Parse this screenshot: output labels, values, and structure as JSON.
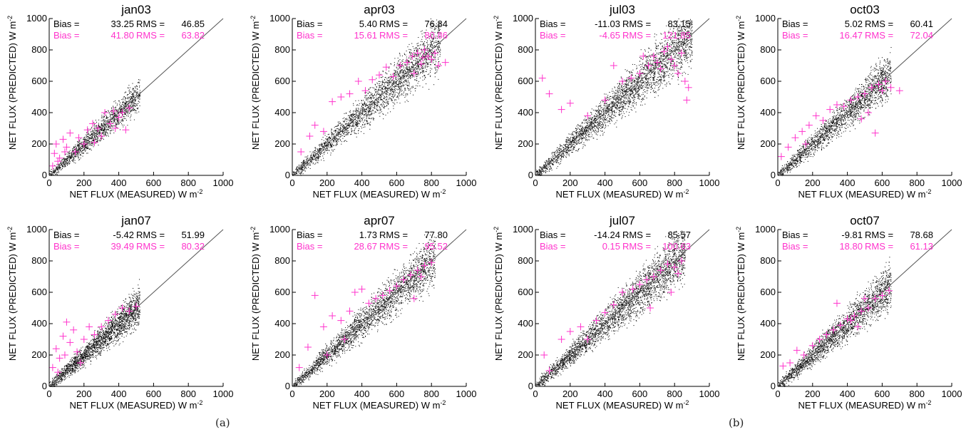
{
  "figure": {
    "label_a": "(a)",
    "label_b": "(b)"
  },
  "colors": {
    "points": "#000000",
    "crosses": "#ff33cc",
    "line": "#555555",
    "axis": "#000000"
  },
  "chart_data": [
    {
      "type": "scatter",
      "title": "jan03",
      "xlabel": "NET FLUX (MEASURED) W m",
      "ylabel": "NET FLUX (PREDICTED) W m",
      "unit_exp": "-2",
      "xlim": [
        0,
        1000
      ],
      "ylim": [
        0,
        1000
      ],
      "xticks": [
        0,
        200,
        400,
        600,
        800,
        1000
      ],
      "yticks": [
        0,
        200,
        400,
        600,
        800,
        1000
      ],
      "grid": false,
      "reference_line": "1:1",
      "stats": [
        {
          "label": "Bias =",
          "bias": "33.25",
          "rms_label": "RMS =",
          "rms": "46.85",
          "color": "#000000"
        },
        {
          "label": "Bias =",
          "bias": "41.80",
          "rms_label": "RMS =",
          "rms": "63.82",
          "color": "#ff33cc"
        }
      ],
      "cloud": {
        "max": 520,
        "n": 1500,
        "spread": 0.12
      },
      "crosses": [
        [
          20,
          60
        ],
        [
          30,
          140
        ],
        [
          40,
          200
        ],
        [
          60,
          110
        ],
        [
          80,
          230
        ],
        [
          100,
          180
        ],
        [
          120,
          270
        ],
        [
          150,
          150
        ],
        [
          170,
          240
        ],
        [
          200,
          200
        ],
        [
          220,
          290
        ],
        [
          250,
          330
        ],
        [
          280,
          300
        ],
        [
          300,
          250
        ],
        [
          320,
          400
        ],
        [
          350,
          330
        ],
        [
          370,
          410
        ],
        [
          400,
          370
        ],
        [
          420,
          400
        ],
        [
          440,
          290
        ],
        [
          460,
          430
        ],
        [
          380,
          300
        ],
        [
          260,
          210
        ],
        [
          90,
          150
        ],
        [
          50,
          90
        ]
      ]
    },
    {
      "type": "scatter",
      "title": "apr03",
      "xlabel": "NET FLUX (MEASURED) W m",
      "ylabel": "NET FLUX (PREDICTED) W m",
      "unit_exp": "-2",
      "xlim": [
        0,
        1000
      ],
      "ylim": [
        0,
        1000
      ],
      "xticks": [
        0,
        200,
        400,
        600,
        800,
        1000
      ],
      "yticks": [
        0,
        200,
        400,
        600,
        800,
        1000
      ],
      "grid": false,
      "reference_line": "1:1",
      "stats": [
        {
          "label": "Bias =",
          "bias": "5.40",
          "rms_label": "RMS =",
          "rms": "76.84",
          "color": "#000000"
        },
        {
          "label": "Bias =",
          "bias": "15.61",
          "rms_label": "RMS =",
          "rms": "80.86",
          "color": "#ff33cc"
        }
      ],
      "cloud": {
        "max": 850,
        "n": 2500,
        "spread": 0.14
      },
      "crosses": [
        [
          50,
          150
        ],
        [
          100,
          250
        ],
        [
          130,
          320
        ],
        [
          180,
          280
        ],
        [
          230,
          470
        ],
        [
          280,
          500
        ],
        [
          330,
          520
        ],
        [
          380,
          600
        ],
        [
          420,
          540
        ],
        [
          460,
          610
        ],
        [
          500,
          640
        ],
        [
          540,
          690
        ],
        [
          580,
          630
        ],
        [
          620,
          700
        ],
        [
          660,
          720
        ],
        [
          690,
          760
        ],
        [
          720,
          780
        ],
        [
          740,
          710
        ],
        [
          760,
          800
        ],
        [
          780,
          760
        ],
        [
          800,
          740
        ],
        [
          820,
          780
        ],
        [
          840,
          700
        ],
        [
          880,
          720
        ],
        [
          700,
          650
        ],
        [
          750,
          750
        ]
      ]
    },
    {
      "type": "scatter",
      "title": "jul03",
      "xlabel": "NET FLUX (MEASURED) W m",
      "ylabel": "NET FLUX (PREDICTED) W m",
      "unit_exp": "-2",
      "xlim": [
        0,
        1000
      ],
      "ylim": [
        0,
        1000
      ],
      "xticks": [
        0,
        200,
        400,
        600,
        800,
        1000
      ],
      "yticks": [
        0,
        200,
        400,
        600,
        800,
        1000
      ],
      "grid": false,
      "reference_line": "1:1",
      "stats": [
        {
          "label": "Bias =",
          "bias": "-11.03",
          "rms_label": "RMS =",
          "rms": "83.15",
          "color": "#000000"
        },
        {
          "label": "Bias =",
          "bias": "-4.65",
          "rms_label": "RMS =",
          "rms": "121.85",
          "color": "#ff33cc"
        }
      ],
      "cloud": {
        "max": 900,
        "n": 3000,
        "spread": 0.15
      },
      "crosses": [
        [
          40,
          620
        ],
        [
          80,
          520
        ],
        [
          150,
          420
        ],
        [
          200,
          460
        ],
        [
          300,
          380
        ],
        [
          400,
          480
        ],
        [
          500,
          600
        ],
        [
          550,
          620
        ],
        [
          600,
          650
        ],
        [
          650,
          700
        ],
        [
          680,
          760
        ],
        [
          700,
          720
        ],
        [
          720,
          680
        ],
        [
          740,
          790
        ],
        [
          760,
          820
        ],
        [
          780,
          740
        ],
        [
          800,
          700
        ],
        [
          820,
          650
        ],
        [
          840,
          780
        ],
        [
          860,
          600
        ],
        [
          870,
          480
        ],
        [
          880,
          560
        ],
        [
          450,
          700
        ],
        [
          620,
          760
        ]
      ]
    },
    {
      "type": "scatter",
      "title": "oct03",
      "xlabel": "NET FLUX (MEASURED) W m",
      "ylabel": "NET FLUX (PREDICTED) W m",
      "unit_exp": "-2",
      "xlim": [
        0,
        1000
      ],
      "ylim": [
        0,
        1000
      ],
      "xticks": [
        0,
        200,
        400,
        600,
        800,
        1000
      ],
      "yticks": [
        0,
        200,
        400,
        600,
        800,
        1000
      ],
      "grid": false,
      "reference_line": "1:1",
      "stats": [
        {
          "label": "Bias =",
          "bias": "5.02",
          "rms_label": "RMS =",
          "rms": "60.41",
          "color": "#000000"
        },
        {
          "label": "Bias =",
          "bias": "16.47",
          "rms_label": "RMS =",
          "rms": "72.04",
          "color": "#ff33cc"
        }
      ],
      "cloud": {
        "max": 650,
        "n": 2000,
        "spread": 0.14
      },
      "crosses": [
        [
          20,
          120
        ],
        [
          60,
          180
        ],
        [
          100,
          240
        ],
        [
          140,
          280
        ],
        [
          180,
          320
        ],
        [
          220,
          380
        ],
        [
          260,
          350
        ],
        [
          300,
          420
        ],
        [
          340,
          450
        ],
        [
          380,
          440
        ],
        [
          420,
          480
        ],
        [
          460,
          500
        ],
        [
          500,
          520
        ],
        [
          540,
          560
        ],
        [
          580,
          580
        ],
        [
          600,
          540
        ],
        [
          620,
          600
        ],
        [
          650,
          560
        ],
        [
          700,
          540
        ],
        [
          520,
          400
        ],
        [
          560,
          270
        ],
        [
          480,
          360
        ],
        [
          160,
          200
        ]
      ]
    },
    {
      "type": "scatter",
      "title": "jan07",
      "xlabel": "NET FLUX (MEASURED) W m",
      "ylabel": "NET FLUX (PREDICTED) W m",
      "unit_exp": "-2",
      "xlim": [
        0,
        1000
      ],
      "ylim": [
        0,
        1000
      ],
      "xticks": [
        0,
        200,
        400,
        600,
        800,
        1000
      ],
      "yticks": [
        0,
        200,
        400,
        600,
        800,
        1000
      ],
      "grid": false,
      "reference_line": "1:1",
      "stats": [
        {
          "label": "Bias =",
          "bias": "-5.42",
          "rms_label": "RMS =",
          "rms": "51.99",
          "color": "#000000"
        },
        {
          "label": "Bias =",
          "bias": "39.49",
          "rms_label": "RMS =",
          "rms": "80.32",
          "color": "#ff33cc"
        }
      ],
      "cloud": {
        "max": 520,
        "n": 2200,
        "spread": 0.14
      },
      "crosses": [
        [
          20,
          120
        ],
        [
          40,
          240
        ],
        [
          60,
          180
        ],
        [
          80,
          320
        ],
        [
          100,
          410
        ],
        [
          120,
          280
        ],
        [
          140,
          360
        ],
        [
          160,
          220
        ],
        [
          200,
          300
        ],
        [
          230,
          380
        ],
        [
          260,
          330
        ],
        [
          300,
          380
        ],
        [
          340,
          420
        ],
        [
          380,
          460
        ],
        [
          420,
          500
        ],
        [
          460,
          480
        ],
        [
          500,
          510
        ],
        [
          180,
          150
        ],
        [
          90,
          200
        ],
        [
          50,
          90
        ]
      ]
    },
    {
      "type": "scatter",
      "title": "apr07",
      "xlabel": "NET FLUX (MEASURED) W m",
      "ylabel": "NET FLUX (PREDICTED) W m",
      "unit_exp": "-2",
      "xlim": [
        0,
        1000
      ],
      "ylim": [
        0,
        1000
      ],
      "xticks": [
        0,
        200,
        400,
        600,
        800,
        1000
      ],
      "yticks": [
        0,
        200,
        400,
        600,
        800,
        1000
      ],
      "grid": false,
      "reference_line": "1:1",
      "stats": [
        {
          "label": "Bias =",
          "bias": "1.73",
          "rms_label": "RMS =",
          "rms": "77.80",
          "color": "#000000"
        },
        {
          "label": "Bias =",
          "bias": "28.67",
          "rms_label": "RMS =",
          "rms": "95.52",
          "color": "#ff33cc"
        }
      ],
      "cloud": {
        "max": 820,
        "n": 2600,
        "spread": 0.14
      },
      "crosses": [
        [
          40,
          120
        ],
        [
          90,
          250
        ],
        [
          130,
          580
        ],
        [
          180,
          380
        ],
        [
          230,
          450
        ],
        [
          280,
          420
        ],
        [
          330,
          480
        ],
        [
          360,
          600
        ],
        [
          400,
          620
        ],
        [
          440,
          530
        ],
        [
          480,
          560
        ],
        [
          520,
          580
        ],
        [
          560,
          610
        ],
        [
          600,
          640
        ],
        [
          640,
          680
        ],
        [
          680,
          710
        ],
        [
          720,
          740
        ],
        [
          760,
          770
        ],
        [
          800,
          790
        ],
        [
          700,
          560
        ],
        [
          740,
          700
        ],
        [
          300,
          300
        ],
        [
          200,
          200
        ]
      ]
    },
    {
      "type": "scatter",
      "title": "jul07",
      "xlabel": "NET FLUX (MEASURED) W m",
      "ylabel": "NET FLUX (PREDICTED) W m",
      "unit_exp": "-2",
      "xlim": [
        0,
        1000
      ],
      "ylim": [
        0,
        1000
      ],
      "xticks": [
        0,
        200,
        400,
        600,
        800,
        1000
      ],
      "yticks": [
        0,
        200,
        400,
        600,
        800,
        1000
      ],
      "grid": false,
      "reference_line": "1:1",
      "stats": [
        {
          "label": "Bias =",
          "bias": "-14.24",
          "rms_label": "RMS =",
          "rms": "85.57",
          "color": "#000000"
        },
        {
          "label": "Bias =",
          "bias": "0.15",
          "rms_label": "RMS =",
          "rms": "100.63",
          "color": "#ff33cc"
        }
      ],
      "cloud": {
        "max": 860,
        "n": 3000,
        "spread": 0.14
      },
      "crosses": [
        [
          50,
          200
        ],
        [
          80,
          100
        ],
        [
          150,
          300
        ],
        [
          200,
          350
        ],
        [
          260,
          380
        ],
        [
          300,
          300
        ],
        [
          350,
          420
        ],
        [
          400,
          470
        ],
        [
          450,
          520
        ],
        [
          500,
          600
        ],
        [
          560,
          620
        ],
        [
          600,
          650
        ],
        [
          640,
          680
        ],
        [
          680,
          700
        ],
        [
          720,
          740
        ],
        [
          760,
          780
        ],
        [
          800,
          760
        ],
        [
          820,
          720
        ],
        [
          840,
          800
        ],
        [
          780,
          600
        ],
        [
          660,
          500
        ]
      ]
    },
    {
      "type": "scatter",
      "title": "oct07",
      "xlabel": "NET FLUX (MEASURED) W m",
      "ylabel": "NET FLUX (PREDICTED) W m",
      "unit_exp": "-2",
      "xlim": [
        0,
        1000
      ],
      "ylim": [
        0,
        1000
      ],
      "xticks": [
        0,
        200,
        400,
        600,
        800,
        1000
      ],
      "yticks": [
        0,
        200,
        400,
        600,
        800,
        1000
      ],
      "grid": false,
      "reference_line": "1:1",
      "stats": [
        {
          "label": "Bias =",
          "bias": "-9.81",
          "rms_label": "RMS =",
          "rms": "78.68",
          "color": "#000000"
        },
        {
          "label": "Bias =",
          "bias": "18.80",
          "rms_label": "RMS =",
          "rms": "61.13",
          "color": "#ff33cc"
        }
      ],
      "cloud": {
        "max": 650,
        "n": 2200,
        "spread": 0.15
      },
      "crosses": [
        [
          30,
          130
        ],
        [
          70,
          150
        ],
        [
          110,
          230
        ],
        [
          150,
          200
        ],
        [
          200,
          260
        ],
        [
          240,
          300
        ],
        [
          280,
          330
        ],
        [
          320,
          360
        ],
        [
          360,
          390
        ],
        [
          400,
          430
        ],
        [
          440,
          450
        ],
        [
          480,
          480
        ],
        [
          520,
          500
        ],
        [
          560,
          560
        ],
        [
          600,
          580
        ],
        [
          640,
          610
        ],
        [
          340,
          530
        ],
        [
          460,
          380
        ],
        [
          500,
          560
        ],
        [
          420,
          420
        ]
      ]
    }
  ]
}
